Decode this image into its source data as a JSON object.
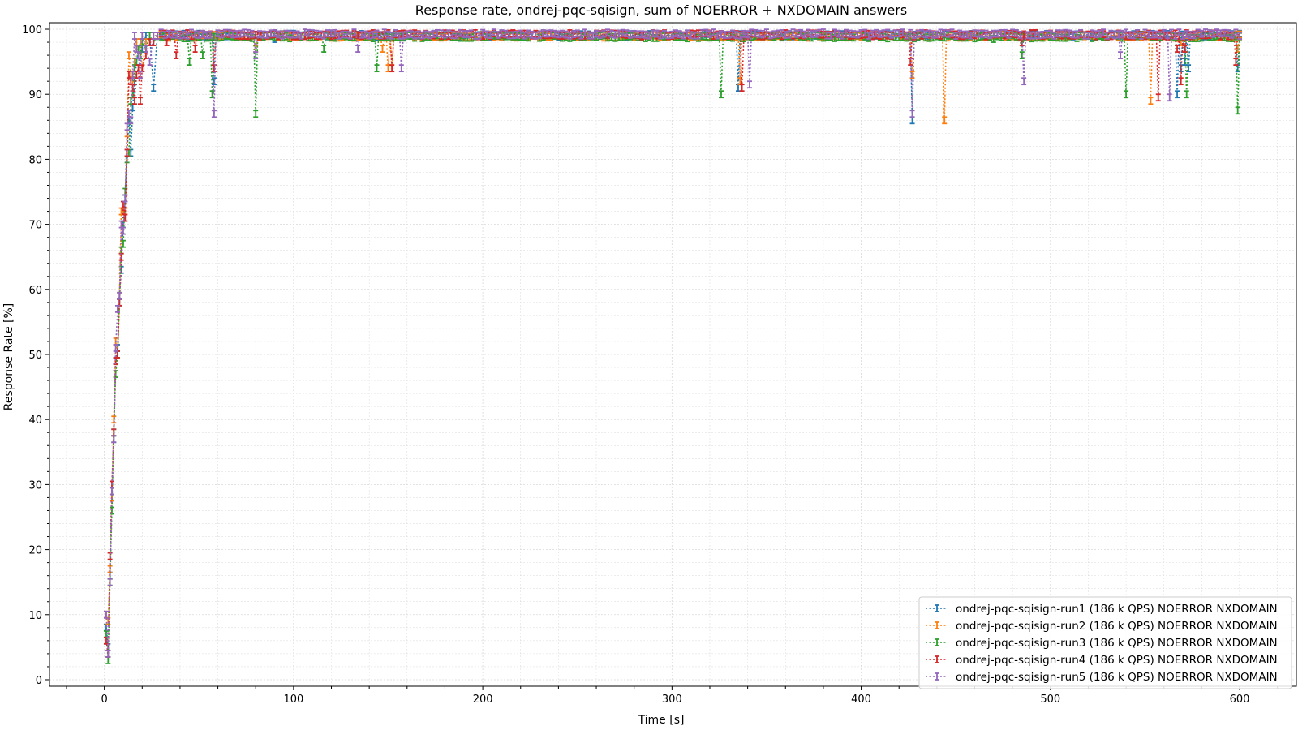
{
  "chart_data": {
    "type": "line",
    "title": "Response rate, ondrej-pqc-sqisign, sum of NOERROR + NXDOMAIN answers",
    "xlabel": "Time [s]",
    "ylabel": "Response Rate [%]",
    "xlim": [
      -29,
      630
    ],
    "ylim": [
      -1,
      101
    ],
    "xticks": [
      0,
      100,
      200,
      300,
      400,
      500,
      600
    ],
    "yticks": [
      0,
      10,
      20,
      30,
      40,
      50,
      60,
      70,
      80,
      90,
      100
    ],
    "grid": true,
    "legend_position": "lower-right",
    "series": [
      {
        "name": "ondrej-pqc-sqisign-run1 (186 k QPS) NOERROR NXDOMAIN",
        "color": "#1f77b4",
        "start": [
          [
            1,
            8
          ],
          [
            2,
            5
          ],
          [
            3,
            16
          ],
          [
            4,
            28
          ],
          [
            5,
            37
          ],
          [
            6,
            49
          ],
          [
            7,
            51
          ],
          [
            8,
            59
          ],
          [
            9,
            63
          ],
          [
            10,
            70
          ],
          [
            11,
            74
          ],
          [
            12,
            81
          ],
          [
            13,
            86
          ],
          [
            14,
            81
          ],
          [
            15,
            88
          ],
          [
            16,
            92
          ],
          [
            17,
            95
          ],
          [
            18,
            97
          ],
          [
            19,
            98
          ],
          [
            20,
            97
          ],
          [
            22,
            99
          ],
          [
            24,
            99
          ],
          [
            26,
            91
          ],
          [
            28,
            99
          ]
        ],
        "baseline": 99.3,
        "dips": [
          [
            58,
            92
          ],
          [
            90,
            98.5
          ],
          [
            166,
            99
          ],
          [
            283,
            98.8
          ],
          [
            335,
            91
          ],
          [
            427,
            86
          ],
          [
            567,
            90
          ],
          [
            569,
            94
          ],
          [
            571,
            95
          ],
          [
            573,
            94
          ],
          [
            599,
            94
          ]
        ]
      },
      {
        "name": "ondrej-pqc-sqisign-run2 (186 k QPS) NOERROR NXDOMAIN",
        "color": "#ff7f0e",
        "start": [
          [
            1,
            10
          ],
          [
            2,
            9
          ],
          [
            3,
            17
          ],
          [
            4,
            28
          ],
          [
            5,
            40
          ],
          [
            6,
            52
          ],
          [
            7,
            50
          ],
          [
            8,
            59
          ],
          [
            9,
            72
          ],
          [
            10,
            72
          ],
          [
            11,
            72
          ],
          [
            12,
            84
          ],
          [
            13,
            96
          ],
          [
            14,
            93
          ],
          [
            15,
            92
          ],
          [
            16,
            95
          ],
          [
            17,
            98
          ],
          [
            18,
            97
          ],
          [
            19,
            98
          ],
          [
            20,
            94
          ],
          [
            22,
            98
          ],
          [
            24,
            99
          ],
          [
            26,
            99
          ],
          [
            28,
            99
          ]
        ],
        "baseline": 99.2,
        "dips": [
          [
            80,
            97
          ],
          [
            147,
            97
          ],
          [
            150,
            94
          ],
          [
            152,
            94
          ],
          [
            336,
            92
          ],
          [
            427,
            93
          ],
          [
            444,
            86
          ],
          [
            553,
            89
          ],
          [
            569,
            98
          ],
          [
            571,
            97
          ],
          [
            599,
            97
          ]
        ]
      },
      {
        "name": "ondrej-pqc-sqisign-run3 (186 k QPS) NOERROR NXDOMAIN",
        "color": "#2ca02c",
        "start": [
          [
            1,
            7
          ],
          [
            2,
            3
          ],
          [
            3,
            15
          ],
          [
            4,
            26
          ],
          [
            5,
            38
          ],
          [
            6,
            47
          ],
          [
            7,
            50
          ],
          [
            8,
            58
          ],
          [
            9,
            66
          ],
          [
            10,
            67
          ],
          [
            11,
            75
          ],
          [
            12,
            80
          ],
          [
            13,
            81
          ],
          [
            14,
            89
          ],
          [
            15,
            90
          ],
          [
            16,
            94
          ],
          [
            17,
            95
          ],
          [
            18,
            97
          ],
          [
            19,
            96
          ],
          [
            20,
            98
          ],
          [
            22,
            97
          ],
          [
            24,
            99
          ],
          [
            26,
            98
          ],
          [
            28,
            99
          ]
        ],
        "baseline": 99.1,
        "dips": [
          [
            45,
            95
          ],
          [
            52,
            96
          ],
          [
            57,
            90
          ],
          [
            80,
            87
          ],
          [
            116,
            97
          ],
          [
            144,
            94
          ],
          [
            326,
            90
          ],
          [
            470,
            98.5
          ],
          [
            485,
            96
          ],
          [
            540,
            90
          ],
          [
            572,
            90
          ],
          [
            599,
            87.5
          ]
        ]
      },
      {
        "name": "ondrej-pqc-sqisign-run4 (186 k QPS) NOERROR NXDOMAIN",
        "color": "#d62728",
        "start": [
          [
            1,
            6
          ],
          [
            2,
            4
          ],
          [
            3,
            19
          ],
          [
            4,
            30
          ],
          [
            5,
            38
          ],
          [
            6,
            49
          ],
          [
            7,
            50
          ],
          [
            8,
            58
          ],
          [
            9,
            65
          ],
          [
            10,
            73
          ],
          [
            11,
            71
          ],
          [
            12,
            81
          ],
          [
            13,
            93
          ],
          [
            14,
            92
          ],
          [
            15,
            91
          ],
          [
            16,
            89
          ],
          [
            17,
            93
          ],
          [
            18,
            94
          ],
          [
            19,
            89
          ],
          [
            20,
            94
          ],
          [
            22,
            96
          ],
          [
            24,
            98
          ],
          [
            26,
            98
          ],
          [
            28,
            99
          ]
        ],
        "baseline": 99.4,
        "dips": [
          [
            33,
            98
          ],
          [
            38,
            96
          ],
          [
            48,
            97
          ],
          [
            58,
            94
          ],
          [
            152,
            94
          ],
          [
            337,
            91
          ],
          [
            426,
            95
          ],
          [
            485,
            98
          ],
          [
            557,
            89.5
          ],
          [
            567,
            97
          ],
          [
            569,
            92
          ],
          [
            571,
            97
          ],
          [
            598,
            95
          ]
        ]
      },
      {
        "name": "ondrej-pqc-sqisign-run5 (186 k QPS) NOERROR NXDOMAIN",
        "color": "#9467bd",
        "start": [
          [
            1,
            10
          ],
          [
            2,
            4
          ],
          [
            3,
            15
          ],
          [
            4,
            29
          ],
          [
            5,
            37
          ],
          [
            6,
            51
          ],
          [
            7,
            57
          ],
          [
            8,
            59
          ],
          [
            9,
            70
          ],
          [
            10,
            69
          ],
          [
            11,
            74
          ],
          [
            12,
            85
          ],
          [
            13,
            87
          ],
          [
            14,
            86
          ],
          [
            15,
            93
          ],
          [
            16,
            99
          ],
          [
            17,
            97
          ],
          [
            18,
            96
          ],
          [
            19,
            93
          ],
          [
            20,
            99
          ],
          [
            22,
            97
          ],
          [
            24,
            95
          ],
          [
            26,
            99
          ],
          [
            28,
            99
          ]
        ],
        "baseline": 99.5,
        "dips": [
          [
            58,
            87
          ],
          [
            80,
            96
          ],
          [
            134,
            97
          ],
          [
            157,
            94
          ],
          [
            341,
            91.5
          ],
          [
            427,
            87
          ],
          [
            486,
            92
          ],
          [
            537,
            96
          ],
          [
            563,
            89.5
          ],
          [
            600,
            99
          ]
        ]
      }
    ]
  }
}
